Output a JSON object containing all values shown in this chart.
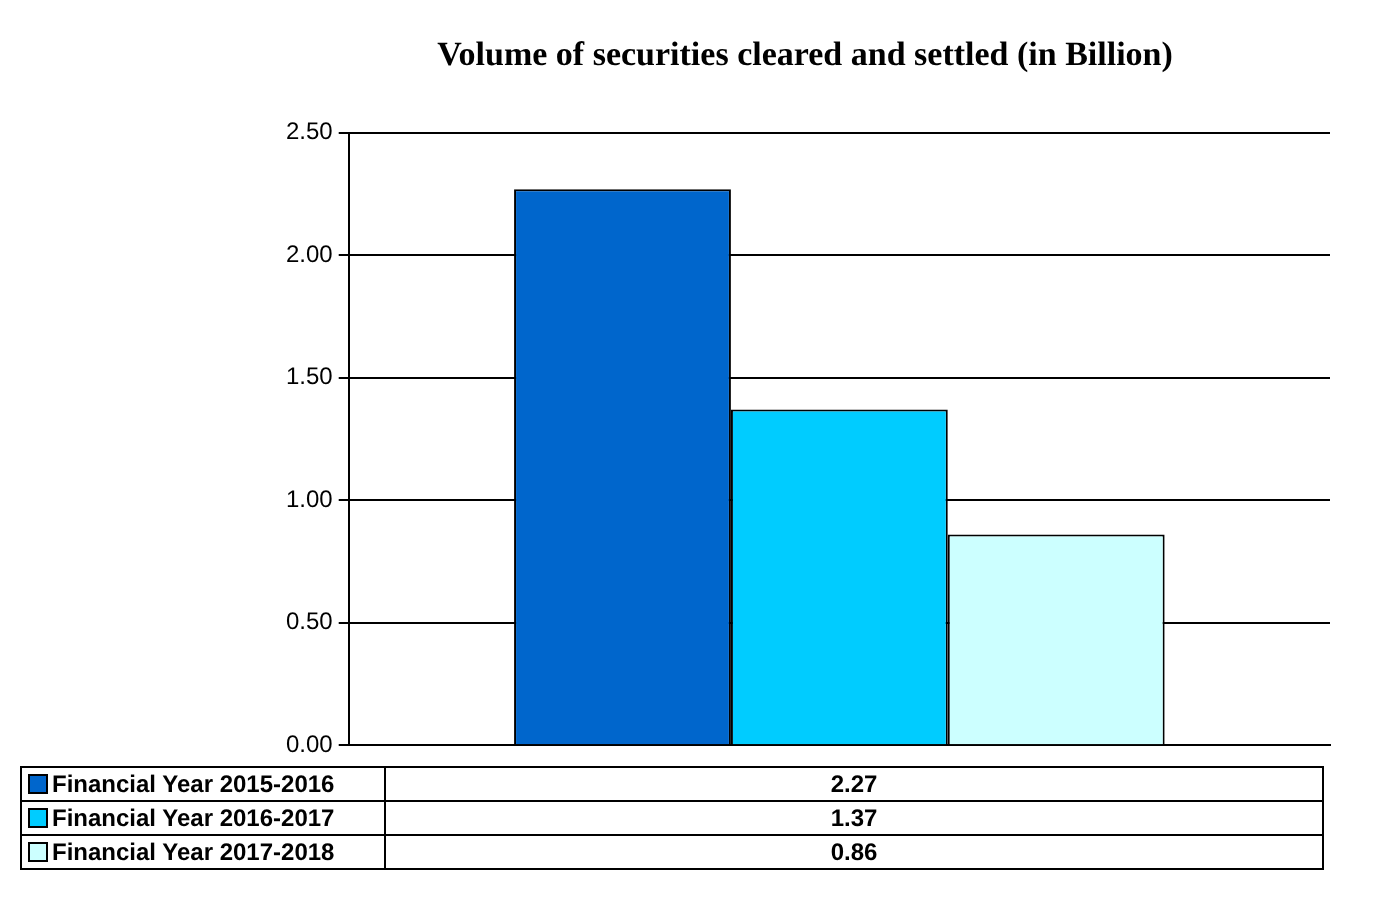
{
  "chart_data": {
    "type": "bar",
    "title": "Volume of securities cleared and settled (in Billion)",
    "categories": [
      null
    ],
    "series": [
      {
        "name": "Financial Year 2015-2016",
        "color": "#0066cc",
        "values": [
          2.27
        ]
      },
      {
        "name": "Financial Year 2016-2017",
        "color": "#00ccff",
        "values": [
          1.37
        ]
      },
      {
        "name": "Financial Year 2017-2018",
        "color": "#ccffff",
        "values": [
          0.86
        ]
      }
    ],
    "ylim": [
      0,
      2.5
    ],
    "yticks": [
      {
        "value": 0,
        "label": "0.00"
      },
      {
        "value": 0.5,
        "label": "0.50"
      },
      {
        "value": 1,
        "label": "1.00"
      },
      {
        "value": 1.5,
        "label": "1.50"
      },
      {
        "value": 2,
        "label": "2.00"
      },
      {
        "value": 2.5,
        "label": "2.50"
      }
    ],
    "grid": "y",
    "legend": "bottom",
    "annotations": [
      "2.27",
      "1.37",
      "0.86"
    ]
  }
}
